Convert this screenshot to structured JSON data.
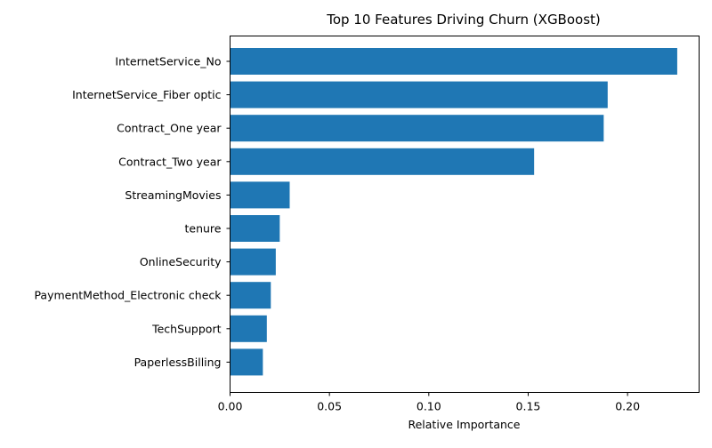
{
  "chart_data": {
    "type": "bar",
    "orientation": "horizontal",
    "title": "Top 10 Features Driving Churn (XGBoost)",
    "xlabel": "Relative Importance",
    "ylabel": "",
    "xlim": [
      0,
      0.236
    ],
    "xticks": [
      0.0,
      0.05,
      0.1,
      0.15,
      0.2
    ],
    "xtick_labels": [
      "0.00",
      "0.05",
      "0.10",
      "0.15",
      "0.20"
    ],
    "categories": [
      "InternetService_No",
      "InternetService_Fiber optic",
      "Contract_One year",
      "Contract_Two year",
      "StreamingMovies",
      "tenure",
      "OnlineSecurity",
      "PaymentMethod_Electronic check",
      "TechSupport",
      "PaperlessBilling"
    ],
    "values": [
      0.225,
      0.19,
      0.188,
      0.153,
      0.03,
      0.025,
      0.023,
      0.0205,
      0.0185,
      0.0165
    ],
    "bar_color": "#1f77b4",
    "grid": false,
    "legend": "none"
  }
}
